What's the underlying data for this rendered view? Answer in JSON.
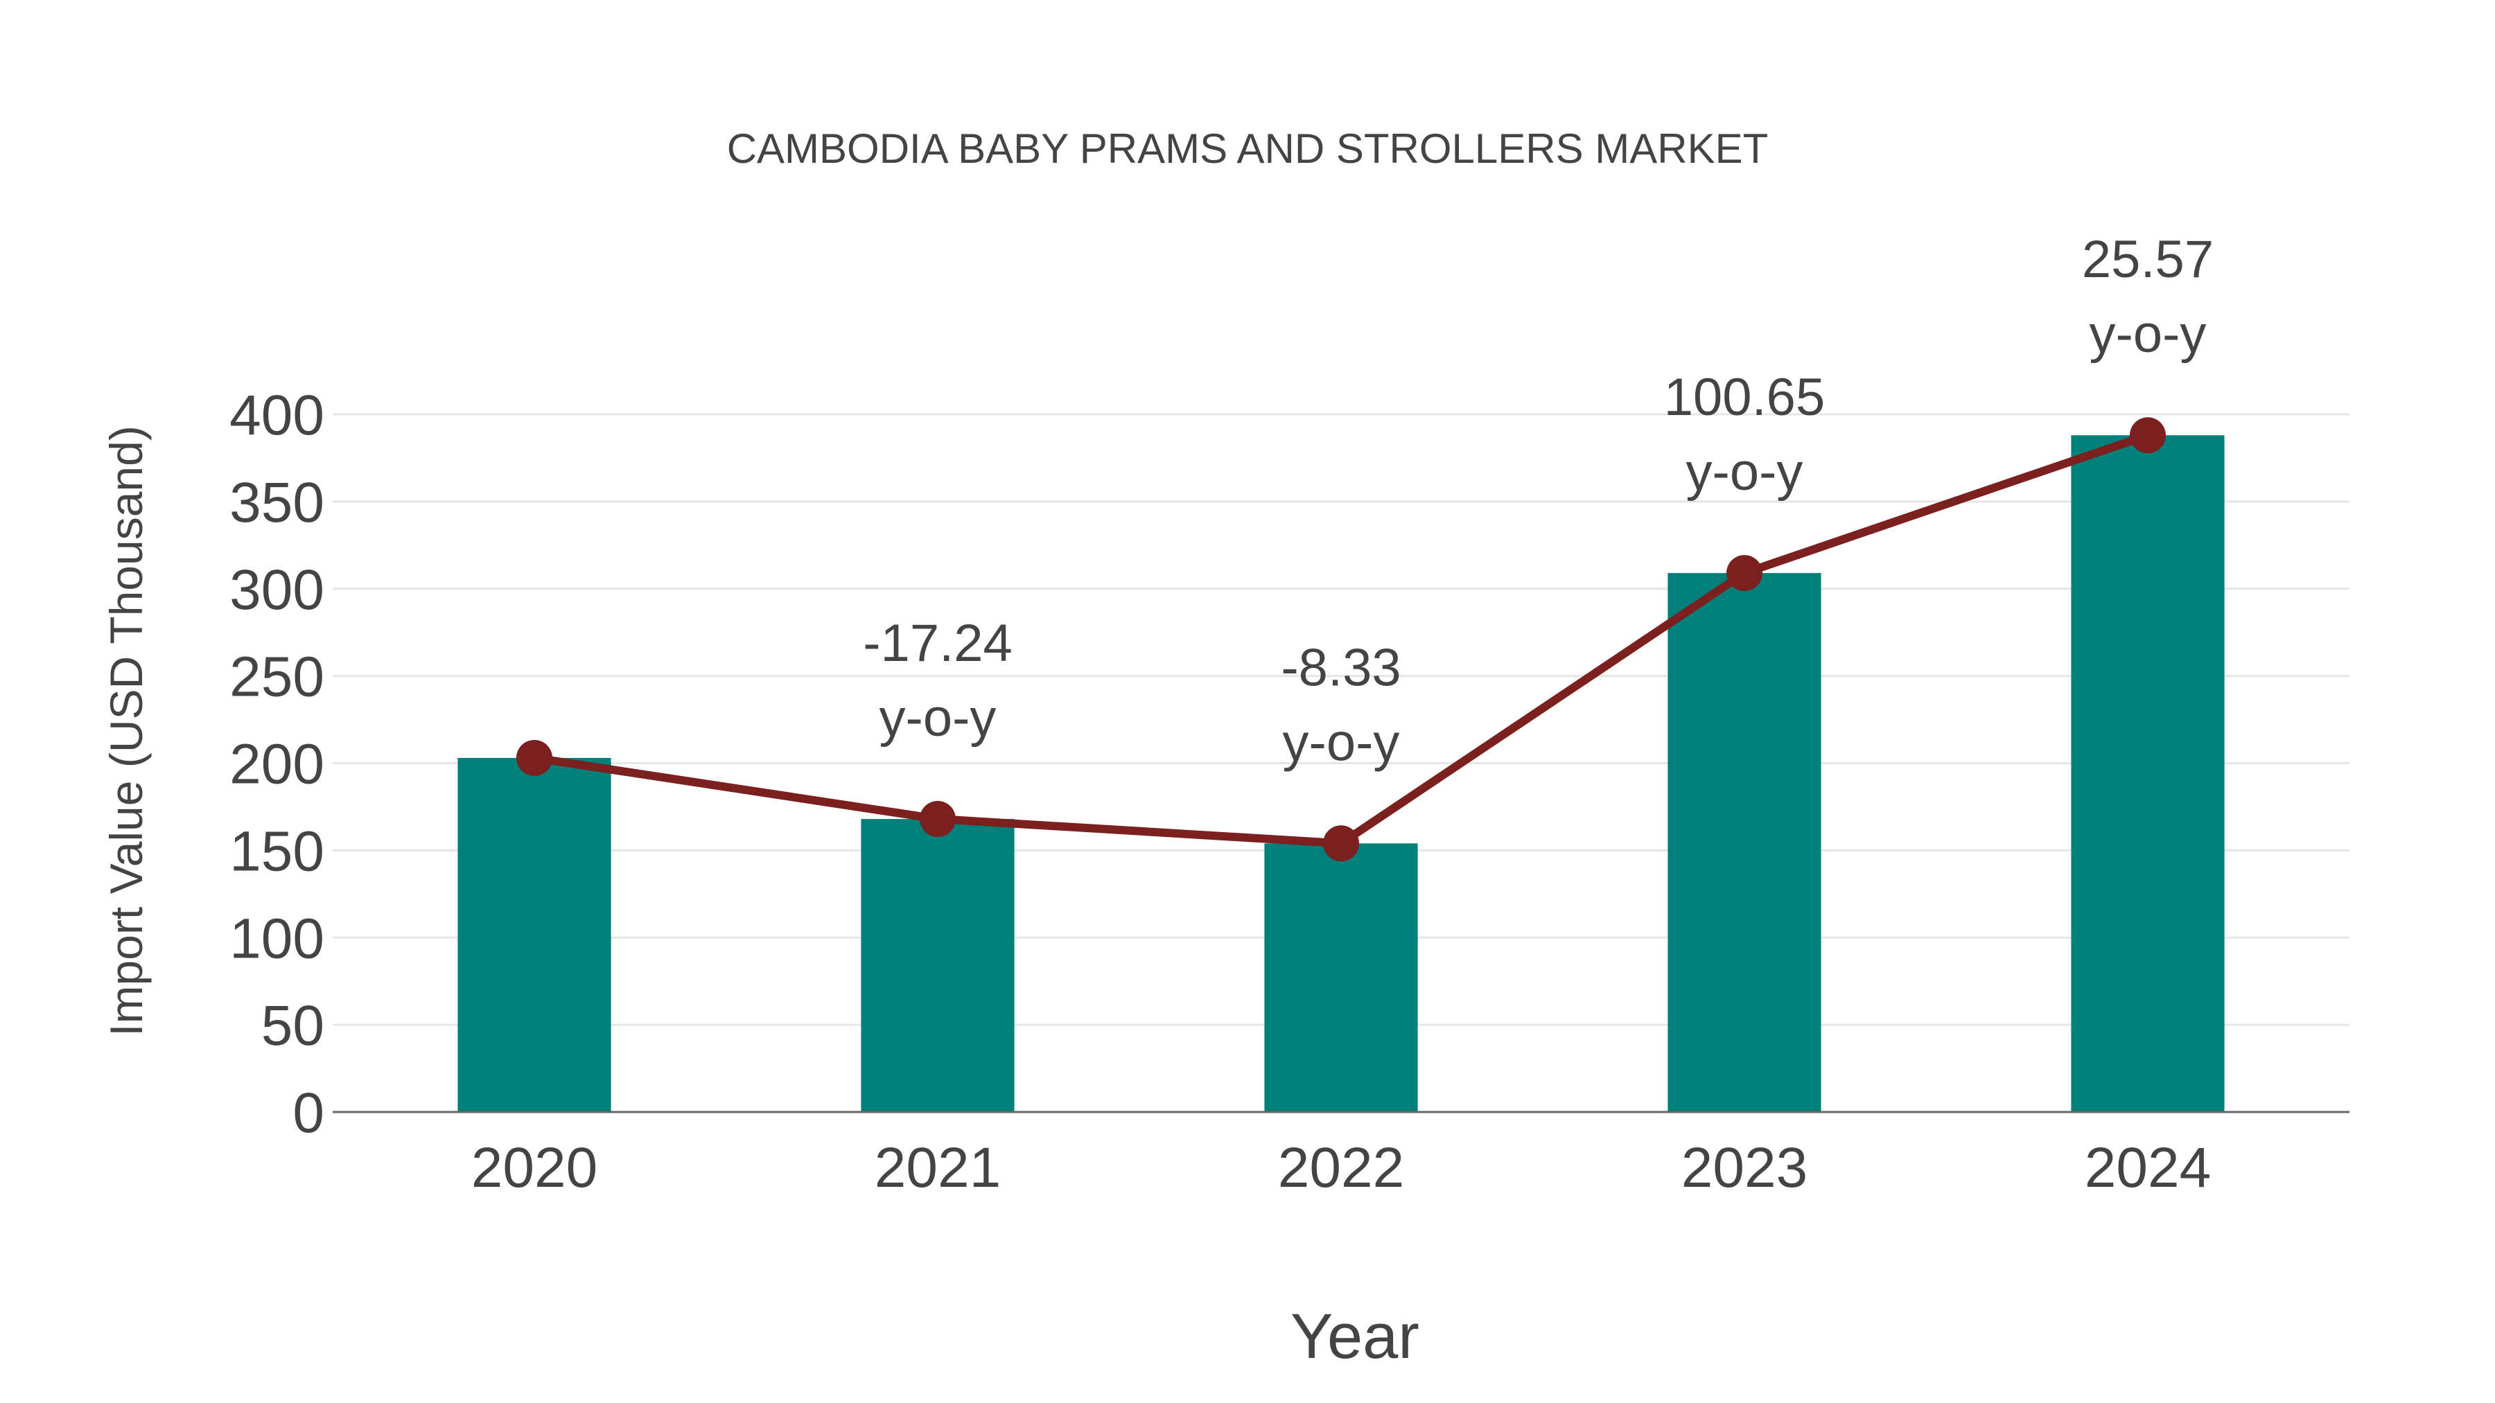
{
  "chart_data": {
    "type": "bar",
    "title": "CAMBODIA BABY PRAMS AND STROLLERS MARKET",
    "xlabel": "Year",
    "ylabel": "Import Value (USD Thousand)",
    "categories": [
      "2020",
      "2021",
      "2022",
      "2023",
      "2024"
    ],
    "series": [
      {
        "name": "Import Value",
        "type": "bar",
        "color": "#00807a",
        "values": [
          203,
          168,
          154,
          309,
          388
        ]
      },
      {
        "name": "Trend",
        "type": "line",
        "color": "#7b1f1f",
        "values": [
          203,
          168,
          154,
          309,
          388
        ]
      }
    ],
    "annotations": [
      {
        "category": "2021",
        "value": "-17.24",
        "suffix": "y-o-y"
      },
      {
        "category": "2022",
        "value": "-8.33",
        "suffix": "y-o-y"
      },
      {
        "category": "2023",
        "value": "100.65",
        "suffix": "y-o-y"
      },
      {
        "category": "2024",
        "value": "25.57",
        "suffix": "y-o-y"
      }
    ],
    "yticks": [
      "0",
      "50",
      "100",
      "150",
      "200",
      "250",
      "300",
      "350",
      "400"
    ],
    "ylim": [
      0,
      400
    ],
    "grid": true,
    "legend": "none"
  },
  "colors": {
    "bar": "#00807a",
    "line": "#7b1f1f",
    "grid": "#e6e6e6",
    "axis": "#666666",
    "text": "#444444"
  }
}
